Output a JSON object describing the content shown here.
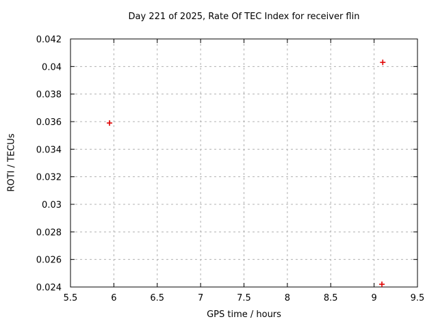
{
  "chart_data": {
    "type": "scatter",
    "title": "Day 221 of 2025, Rate Of TEC Index for receiver flin",
    "xlabel": "GPS time / hours",
    "ylabel": "ROTI / TECUs",
    "xlim": [
      5.5,
      9.5
    ],
    "ylim": [
      0.024,
      0.042
    ],
    "x_ticks": [
      5.5,
      6,
      6.5,
      7,
      7.5,
      8,
      8.5,
      9,
      9.5
    ],
    "x_tick_labels": [
      "5.5",
      "6",
      "6.5",
      "7",
      "7.5",
      "8",
      "8.5",
      "9",
      "9.5"
    ],
    "y_ticks": [
      0.024,
      0.026,
      0.028,
      0.03,
      0.032,
      0.034,
      0.036,
      0.038,
      0.04,
      0.042
    ],
    "y_tick_labels": [
      "0.024",
      "0.026",
      "0.028",
      "0.03",
      "0.032",
      "0.034",
      "0.036",
      "0.038",
      "0.04",
      "0.042"
    ],
    "grid": true,
    "legend": "none",
    "marker": "plus",
    "points": [
      {
        "x": 5.95,
        "y": 0.0359
      },
      {
        "x": 9.1,
        "y": 0.0403
      },
      {
        "x": 9.09,
        "y": 0.0242
      }
    ]
  },
  "colors": {
    "background": "#ffffff",
    "frame": "#000000",
    "grid": "#b0b0b0",
    "marker": "#e00000",
    "text": "#000000"
  }
}
